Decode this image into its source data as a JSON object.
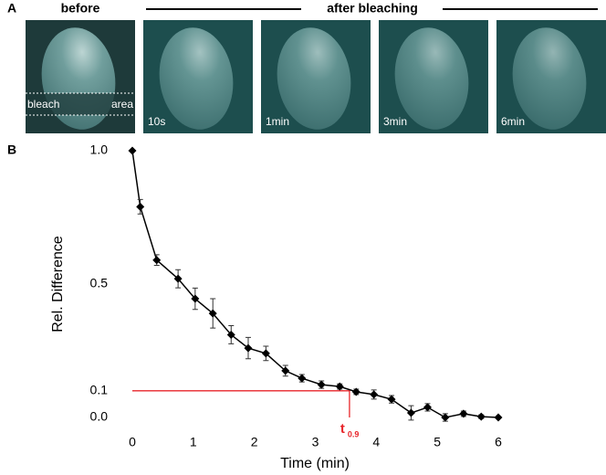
{
  "panel_a": {
    "label": "A",
    "before": "before",
    "after": "after bleaching",
    "bleach": "bleach",
    "area": "area",
    "frames": [
      "10s",
      "1min",
      "3min",
      "6min"
    ]
  },
  "chart_data": {
    "type": "line",
    "panel_label": "B",
    "x_label": "Time (min)",
    "y_label": "Rel. Difference",
    "x": [
      0,
      0.13,
      0.4,
      0.75,
      1.03,
      1.32,
      1.62,
      1.9,
      2.19,
      2.51,
      2.78,
      3.1,
      3.4,
      3.67,
      3.96,
      4.25,
      4.57,
      4.84,
      5.13,
      5.43,
      5.72,
      6
    ],
    "series": [
      {
        "color": "#000000",
        "values": [
          1.0,
          0.79,
          0.59,
          0.52,
          0.445,
          0.39,
          0.31,
          0.26,
          0.24,
          0.175,
          0.147,
          0.123,
          0.116,
          0.096,
          0.086,
          0.068,
          0.017,
          0.038,
          0.0,
          0.014,
          0.003,
          0.0
        ],
        "errors": [
          0,
          0.027,
          0.02,
          0.034,
          0.04,
          0.055,
          0.034,
          0.04,
          0.027,
          0.02,
          0.014,
          0.014,
          0.01,
          0.01,
          0.017,
          0.014,
          0.027,
          0.014,
          0.014,
          0.01,
          0.007,
          0
        ]
      }
    ],
    "xlim": [
      0,
      6
    ],
    "ylim": [
      0,
      1
    ],
    "xticks": [
      0,
      1,
      2,
      3,
      4,
      5,
      6
    ],
    "yticks": [
      {
        "value": 0,
        "label": "0.0"
      },
      0.1,
      0.5,
      {
        "value": 1,
        "label": "1.0"
      }
    ],
    "annotation": {
      "label": "t",
      "subscript": "0.9",
      "threshold": 0.1,
      "x": 3.56,
      "color": "#e8262b"
    }
  }
}
